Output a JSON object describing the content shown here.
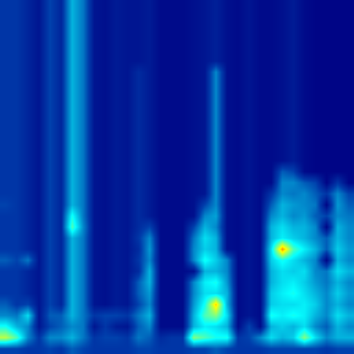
{
  "chart_data": {
    "type": "heatmap",
    "color": "Jet",
    "tick_labels": false,
    "zlim": [
      0.1,
      1
    ],
    "cells": [
      [
        0.2,
        0.2,
        0.17,
        0.14,
        0.22,
        0.17,
        0.35,
        0.28,
        0.14,
        0.13,
        0.15,
        0.14,
        0.14,
        0.15,
        0.12,
        0.12,
        0.12,
        0.13,
        0.14,
        0.16,
        0.13,
        0.12,
        0.14,
        0.12,
        0.12,
        0.13,
        0.15,
        0.12,
        0.11,
        0.11,
        0.11,
        0.11
      ],
      [
        0.2,
        0.2,
        0.17,
        0.14,
        0.22,
        0.17,
        0.35,
        0.28,
        0.14,
        0.13,
        0.15,
        0.14,
        0.14,
        0.15,
        0.12,
        0.12,
        0.12,
        0.13,
        0.14,
        0.16,
        0.13,
        0.12,
        0.14,
        0.12,
        0.12,
        0.13,
        0.15,
        0.12,
        0.11,
        0.11,
        0.11,
        0.11
      ],
      [
        0.2,
        0.2,
        0.17,
        0.14,
        0.22,
        0.17,
        0.35,
        0.28,
        0.14,
        0.13,
        0.15,
        0.14,
        0.14,
        0.15,
        0.12,
        0.12,
        0.12,
        0.13,
        0.14,
        0.16,
        0.13,
        0.12,
        0.14,
        0.12,
        0.12,
        0.13,
        0.15,
        0.12,
        0.11,
        0.11,
        0.11,
        0.11
      ],
      [
        0.2,
        0.2,
        0.17,
        0.14,
        0.22,
        0.17,
        0.35,
        0.28,
        0.14,
        0.13,
        0.15,
        0.14,
        0.14,
        0.15,
        0.12,
        0.12,
        0.12,
        0.13,
        0.14,
        0.16,
        0.13,
        0.12,
        0.14,
        0.12,
        0.12,
        0.13,
        0.15,
        0.12,
        0.11,
        0.11,
        0.11,
        0.11
      ],
      [
        0.2,
        0.2,
        0.17,
        0.14,
        0.22,
        0.17,
        0.35,
        0.28,
        0.14,
        0.13,
        0.15,
        0.14,
        0.14,
        0.15,
        0.12,
        0.12,
        0.12,
        0.13,
        0.14,
        0.16,
        0.13,
        0.12,
        0.14,
        0.12,
        0.12,
        0.13,
        0.15,
        0.12,
        0.11,
        0.11,
        0.11,
        0.11
      ],
      [
        0.2,
        0.2,
        0.17,
        0.14,
        0.22,
        0.17,
        0.35,
        0.28,
        0.14,
        0.13,
        0.15,
        0.14,
        0.14,
        0.15,
        0.12,
        0.12,
        0.12,
        0.13,
        0.14,
        0.16,
        0.13,
        0.12,
        0.14,
        0.12,
        0.12,
        0.13,
        0.15,
        0.12,
        0.11,
        0.11,
        0.11,
        0.11
      ],
      [
        0.2,
        0.2,
        0.17,
        0.14,
        0.22,
        0.17,
        0.35,
        0.28,
        0.14,
        0.13,
        0.15,
        0.14,
        0.18,
        0.15,
        0.12,
        0.12,
        0.12,
        0.13,
        0.14,
        0.3,
        0.13,
        0.12,
        0.14,
        0.12,
        0.12,
        0.13,
        0.15,
        0.12,
        0.11,
        0.11,
        0.11,
        0.11
      ],
      [
        0.2,
        0.2,
        0.17,
        0.14,
        0.22,
        0.17,
        0.35,
        0.28,
        0.14,
        0.13,
        0.15,
        0.14,
        0.18,
        0.15,
        0.12,
        0.12,
        0.12,
        0.13,
        0.14,
        0.3,
        0.13,
        0.12,
        0.14,
        0.12,
        0.12,
        0.13,
        0.15,
        0.12,
        0.11,
        0.11,
        0.11,
        0.11
      ],
      [
        0.2,
        0.2,
        0.17,
        0.14,
        0.22,
        0.17,
        0.35,
        0.28,
        0.14,
        0.13,
        0.15,
        0.14,
        0.18,
        0.15,
        0.12,
        0.12,
        0.12,
        0.13,
        0.14,
        0.3,
        0.13,
        0.12,
        0.14,
        0.12,
        0.12,
        0.13,
        0.15,
        0.12,
        0.11,
        0.11,
        0.11,
        0.11
      ],
      [
        0.2,
        0.2,
        0.17,
        0.14,
        0.22,
        0.17,
        0.35,
        0.28,
        0.14,
        0.13,
        0.15,
        0.14,
        0.18,
        0.15,
        0.12,
        0.12,
        0.12,
        0.13,
        0.14,
        0.3,
        0.13,
        0.12,
        0.14,
        0.12,
        0.12,
        0.13,
        0.15,
        0.12,
        0.11,
        0.11,
        0.11,
        0.11
      ],
      [
        0.2,
        0.2,
        0.17,
        0.14,
        0.22,
        0.17,
        0.35,
        0.28,
        0.14,
        0.13,
        0.15,
        0.14,
        0.18,
        0.15,
        0.12,
        0.12,
        0.12,
        0.13,
        0.14,
        0.3,
        0.13,
        0.12,
        0.14,
        0.12,
        0.12,
        0.13,
        0.15,
        0.12,
        0.11,
        0.11,
        0.11,
        0.11
      ],
      [
        0.2,
        0.2,
        0.17,
        0.14,
        0.22,
        0.17,
        0.35,
        0.28,
        0.14,
        0.13,
        0.15,
        0.14,
        0.18,
        0.15,
        0.12,
        0.12,
        0.12,
        0.13,
        0.14,
        0.3,
        0.13,
        0.12,
        0.14,
        0.12,
        0.12,
        0.13,
        0.15,
        0.12,
        0.11,
        0.11,
        0.11,
        0.11
      ],
      [
        0.2,
        0.2,
        0.17,
        0.14,
        0.22,
        0.17,
        0.35,
        0.28,
        0.14,
        0.13,
        0.15,
        0.14,
        0.18,
        0.15,
        0.12,
        0.12,
        0.12,
        0.13,
        0.14,
        0.3,
        0.13,
        0.12,
        0.14,
        0.12,
        0.12,
        0.13,
        0.15,
        0.12,
        0.11,
        0.11,
        0.11,
        0.11
      ],
      [
        0.2,
        0.2,
        0.17,
        0.14,
        0.22,
        0.17,
        0.35,
        0.28,
        0.14,
        0.13,
        0.15,
        0.14,
        0.18,
        0.15,
        0.12,
        0.12,
        0.12,
        0.13,
        0.14,
        0.3,
        0.13,
        0.12,
        0.14,
        0.12,
        0.12,
        0.13,
        0.15,
        0.12,
        0.11,
        0.11,
        0.11,
        0.11
      ],
      [
        0.2,
        0.2,
        0.17,
        0.14,
        0.22,
        0.17,
        0.35,
        0.28,
        0.14,
        0.13,
        0.15,
        0.14,
        0.18,
        0.15,
        0.12,
        0.12,
        0.12,
        0.13,
        0.14,
        0.3,
        0.13,
        0.12,
        0.14,
        0.12,
        0.12,
        0.13,
        0.15,
        0.12,
        0.11,
        0.11,
        0.11,
        0.11
      ],
      [
        0.2,
        0.2,
        0.17,
        0.14,
        0.22,
        0.17,
        0.35,
        0.28,
        0.14,
        0.13,
        0.15,
        0.14,
        0.18,
        0.15,
        0.12,
        0.12,
        0.12,
        0.13,
        0.14,
        0.3,
        0.13,
        0.12,
        0.14,
        0.12,
        0.12,
        0.25,
        0.22,
        0.12,
        0.11,
        0.11,
        0.11,
        0.11
      ],
      [
        0.2,
        0.2,
        0.17,
        0.14,
        0.22,
        0.17,
        0.35,
        0.28,
        0.14,
        0.13,
        0.15,
        0.14,
        0.18,
        0.15,
        0.12,
        0.12,
        0.12,
        0.13,
        0.14,
        0.3,
        0.13,
        0.12,
        0.14,
        0.12,
        0.12,
        0.3,
        0.3,
        0.25,
        0.22,
        0.11,
        0.2,
        0.11
      ],
      [
        0.2,
        0.2,
        0.17,
        0.14,
        0.22,
        0.17,
        0.35,
        0.28,
        0.14,
        0.13,
        0.15,
        0.14,
        0.18,
        0.15,
        0.12,
        0.12,
        0.12,
        0.13,
        0.14,
        0.3,
        0.13,
        0.12,
        0.14,
        0.12,
        0.2,
        0.3,
        0.28,
        0.3,
        0.25,
        0.2,
        0.3,
        0.22
      ],
      [
        0.22,
        0.2,
        0.17,
        0.14,
        0.22,
        0.17,
        0.35,
        0.28,
        0.14,
        0.13,
        0.15,
        0.14,
        0.18,
        0.15,
        0.12,
        0.12,
        0.12,
        0.13,
        0.22,
        0.3,
        0.13,
        0.12,
        0.14,
        0.12,
        0.25,
        0.35,
        0.32,
        0.3,
        0.28,
        0.11,
        0.32,
        0.25
      ],
      [
        0.2,
        0.2,
        0.17,
        0.14,
        0.22,
        0.17,
        0.45,
        0.28,
        0.14,
        0.13,
        0.15,
        0.14,
        0.18,
        0.15,
        0.12,
        0.12,
        0.12,
        0.13,
        0.3,
        0.33,
        0.13,
        0.12,
        0.14,
        0.12,
        0.3,
        0.35,
        0.3,
        0.32,
        0.25,
        0.22,
        0.3,
        0.28
      ],
      [
        0.2,
        0.2,
        0.17,
        0.14,
        0.22,
        0.17,
        0.5,
        0.3,
        0.14,
        0.13,
        0.15,
        0.14,
        0.18,
        0.22,
        0.12,
        0.12,
        0.12,
        0.22,
        0.35,
        0.3,
        0.13,
        0.12,
        0.14,
        0.12,
        0.35,
        0.4,
        0.35,
        0.35,
        0.3,
        0.11,
        0.35,
        0.3
      ],
      [
        0.2,
        0.2,
        0.17,
        0.14,
        0.22,
        0.17,
        0.35,
        0.28,
        0.14,
        0.13,
        0.15,
        0.14,
        0.2,
        0.3,
        0.12,
        0.12,
        0.12,
        0.28,
        0.4,
        0.35,
        0.13,
        0.12,
        0.14,
        0.12,
        0.35,
        0.42,
        0.38,
        0.35,
        0.3,
        0.25,
        0.35,
        0.3
      ],
      [
        0.2,
        0.2,
        0.17,
        0.14,
        0.22,
        0.17,
        0.35,
        0.28,
        0.14,
        0.13,
        0.15,
        0.14,
        0.18,
        0.32,
        0.12,
        0.12,
        0.12,
        0.3,
        0.38,
        0.35,
        0.13,
        0.12,
        0.14,
        0.12,
        0.4,
        0.75,
        0.5,
        0.42,
        0.35,
        0.25,
        0.38,
        0.32
      ],
      [
        0.25,
        0.22,
        0.28,
        0.14,
        0.22,
        0.17,
        0.35,
        0.28,
        0.14,
        0.13,
        0.15,
        0.14,
        0.2,
        0.3,
        0.12,
        0.12,
        0.12,
        0.3,
        0.45,
        0.38,
        0.3,
        0.12,
        0.14,
        0.12,
        0.38,
        0.45,
        0.4,
        0.35,
        0.3,
        0.11,
        0.35,
        0.3
      ],
      [
        0.2,
        0.2,
        0.17,
        0.14,
        0.22,
        0.17,
        0.35,
        0.28,
        0.14,
        0.13,
        0.15,
        0.14,
        0.18,
        0.35,
        0.12,
        0.12,
        0.12,
        0.13,
        0.35,
        0.35,
        0.3,
        0.12,
        0.14,
        0.12,
        0.35,
        0.4,
        0.38,
        0.4,
        0.3,
        0.28,
        0.4,
        0.35
      ],
      [
        0.2,
        0.2,
        0.17,
        0.14,
        0.22,
        0.17,
        0.35,
        0.28,
        0.14,
        0.13,
        0.15,
        0.14,
        0.25,
        0.35,
        0.12,
        0.12,
        0.12,
        0.3,
        0.42,
        0.45,
        0.32,
        0.12,
        0.14,
        0.12,
        0.35,
        0.4,
        0.42,
        0.38,
        0.32,
        0.28,
        0.35,
        0.3
      ],
      [
        0.2,
        0.2,
        0.17,
        0.14,
        0.22,
        0.17,
        0.35,
        0.28,
        0.14,
        0.13,
        0.15,
        0.14,
        0.25,
        0.32,
        0.12,
        0.12,
        0.12,
        0.3,
        0.4,
        0.4,
        0.35,
        0.12,
        0.14,
        0.12,
        0.38,
        0.42,
        0.45,
        0.4,
        0.35,
        0.3,
        0.38,
        0.32
      ],
      [
        0.25,
        0.2,
        0.22,
        0.14,
        0.22,
        0.17,
        0.35,
        0.28,
        0.14,
        0.13,
        0.15,
        0.14,
        0.22,
        0.3,
        0.12,
        0.12,
        0.12,
        0.32,
        0.45,
        0.7,
        0.35,
        0.12,
        0.14,
        0.12,
        0.38,
        0.4,
        0.4,
        0.42,
        0.38,
        0.3,
        0.35,
        0.3
      ],
      [
        0.3,
        0.28,
        0.4,
        0.14,
        0.25,
        0.25,
        0.35,
        0.28,
        0.2,
        0.22,
        0.22,
        0.2,
        0.28,
        0.35,
        0.12,
        0.12,
        0.12,
        0.35,
        0.5,
        0.55,
        0.4,
        0.12,
        0.14,
        0.12,
        0.45,
        0.42,
        0.45,
        0.42,
        0.35,
        0.3,
        0.4,
        0.35
      ],
      [
        0.45,
        0.35,
        0.3,
        0.14,
        0.22,
        0.25,
        0.3,
        0.28,
        0.14,
        0.2,
        0.15,
        0.14,
        0.25,
        0.3,
        0.12,
        0.12,
        0.12,
        0.35,
        0.42,
        0.4,
        0.35,
        0.12,
        0.22,
        0.12,
        0.35,
        0.38,
        0.35,
        0.4,
        0.3,
        0.25,
        0.35,
        0.3
      ],
      [
        0.6,
        0.5,
        0.3,
        0.2,
        0.3,
        0.3,
        0.35,
        0.28,
        0.2,
        0.22,
        0.22,
        0.2,
        0.28,
        0.25,
        0.18,
        0.2,
        0.2,
        0.55,
        0.5,
        0.45,
        0.45,
        0.2,
        0.22,
        0.3,
        0.4,
        0.35,
        0.38,
        0.55,
        0.4,
        0.3,
        0.35,
        0.35
      ],
      [
        0.22,
        0.22,
        0.2,
        0.2,
        0.22,
        0.2,
        0.25,
        0.22,
        0.2,
        0.2,
        0.2,
        0.2,
        0.22,
        0.22,
        0.2,
        0.2,
        0.2,
        0.22,
        0.22,
        0.25,
        0.22,
        0.2,
        0.2,
        0.2,
        0.22,
        0.22,
        0.22,
        0.22,
        0.22,
        0.2,
        0.22,
        0.22
      ]
    ]
  }
}
